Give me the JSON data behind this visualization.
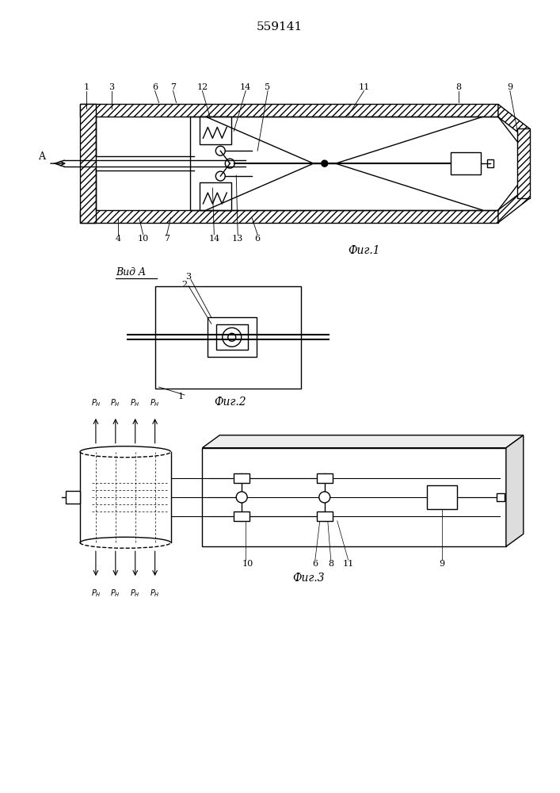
{
  "title": "559141",
  "bg_color": "#ffffff",
  "line_color": "#000000",
  "fig1_caption": "Фиг.1",
  "fig2_caption": "Фиг.2",
  "fig3_caption": "Фиг.3",
  "vida_label": "Вид A"
}
